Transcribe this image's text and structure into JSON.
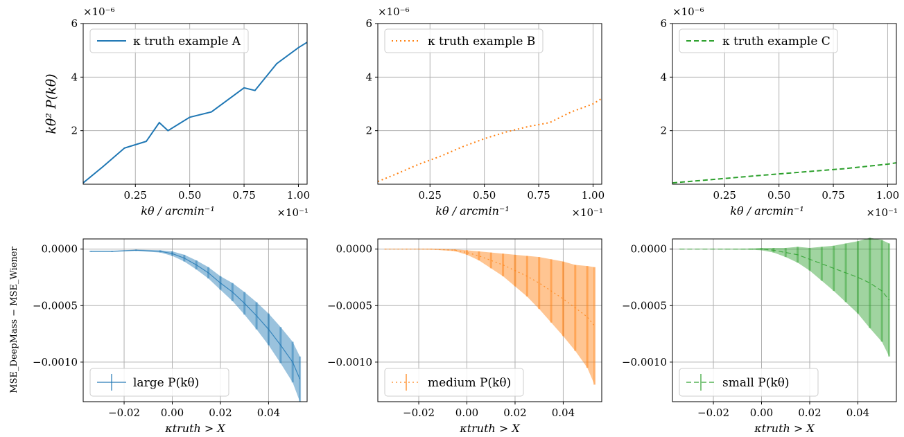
{
  "figure": {
    "top_ylabel": "kθ² P(kθ)",
    "bottom_ylabel": "MSE_DeepMass − MSE_Wiener"
  },
  "chart_data": [
    {
      "type": "line",
      "panel": "top-left",
      "color": "#1f77b4",
      "linestyle": "solid",
      "legend": "κ truth example A",
      "legend_position": "top-left",
      "xlabel": "kθ / arcmin⁻¹",
      "x_multiplier": "×10⁻¹",
      "y_multiplier": "×10⁻⁶",
      "xlim": [
        0.01,
        1.04
      ],
      "ylim": [
        0,
        6
      ],
      "xticks": [
        "0.25",
        "0.50",
        "0.75",
        "1.00"
      ],
      "yticks": [
        "2",
        "4",
        "6"
      ],
      "x": [
        0.01,
        0.1,
        0.2,
        0.3,
        0.36,
        0.4,
        0.5,
        0.6,
        0.7,
        0.75,
        0.8,
        0.9,
        1.0,
        1.04
      ],
      "y": [
        0.05,
        0.65,
        1.35,
        1.6,
        2.3,
        2.0,
        2.5,
        2.7,
        3.3,
        3.6,
        3.5,
        4.5,
        5.1,
        5.3
      ],
      "grid": true
    },
    {
      "type": "line",
      "panel": "top-middle",
      "color": "#ff7f0e",
      "linestyle": "dotted",
      "legend": "κ truth example B",
      "legend_position": "top-left",
      "xlabel": "kθ / arcmin⁻¹",
      "x_multiplier": "×10⁻¹",
      "y_multiplier": "×10⁻⁶",
      "xlim": [
        0.01,
        1.04
      ],
      "ylim": [
        0,
        6
      ],
      "xticks": [
        "0.25",
        "0.50",
        "0.75",
        "1.00"
      ],
      "yticks": [
        "2",
        "4",
        "6"
      ],
      "x": [
        0.01,
        0.1,
        0.2,
        0.3,
        0.4,
        0.5,
        0.6,
        0.7,
        0.8,
        0.9,
        1.0,
        1.04
      ],
      "y": [
        0.1,
        0.4,
        0.75,
        1.05,
        1.4,
        1.7,
        1.95,
        2.15,
        2.3,
        2.7,
        3.0,
        3.2
      ],
      "grid": true
    },
    {
      "type": "line",
      "panel": "top-right",
      "color": "#2ca02c",
      "linestyle": "dashed",
      "legend": "κ truth example C",
      "legend_position": "top-left",
      "xlabel": "kθ / arcmin⁻¹",
      "x_multiplier": "×10⁻¹",
      "y_multiplier": "×10⁻⁶",
      "xlim": [
        0.01,
        1.04
      ],
      "ylim": [
        0,
        6
      ],
      "xticks": [
        "0.25",
        "0.50",
        "0.75",
        "1.00"
      ],
      "yticks": [
        "2",
        "4",
        "6"
      ],
      "x": [
        0.01,
        0.2,
        0.4,
        0.6,
        0.8,
        1.0,
        1.04
      ],
      "y": [
        0.05,
        0.18,
        0.32,
        0.45,
        0.58,
        0.75,
        0.8
      ],
      "grid": true
    },
    {
      "type": "line",
      "panel": "bottom-left",
      "color": "#1f77b4",
      "linestyle": "solid",
      "errorbars": true,
      "legend": "large  P(kθ)",
      "legend_position": "bottom-left",
      "xlabel": "κtruth > X",
      "xlim": [
        -0.037,
        0.056
      ],
      "ylim": [
        -0.00135,
        9e-05
      ],
      "xticks": [
        "−0.02",
        "0.00",
        "0.02",
        "0.04"
      ],
      "yticks": [
        "0.0000",
        "−0.0005",
        "−0.0010"
      ],
      "x": [
        -0.034,
        -0.025,
        -0.015,
        -0.005,
        0.0,
        0.005,
        0.01,
        0.015,
        0.02,
        0.025,
        0.03,
        0.035,
        0.04,
        0.045,
        0.05,
        0.053
      ],
      "y": [
        -2e-05,
        -2e-05,
        -1e-05,
        -2e-05,
        -4e-05,
        -8e-05,
        -0.00014,
        -0.00021,
        -0.0003,
        -0.00038,
        -0.00048,
        -0.00059,
        -0.00071,
        -0.00085,
        -0.001,
        -0.00115
      ],
      "err": [
        5e-06,
        5e-06,
        6e-06,
        1e-05,
        2e-05,
        3e-05,
        4e-05,
        5e-05,
        6e-05,
        8e-05,
        0.0001,
        0.00012,
        0.00014,
        0.00016,
        0.00018,
        0.0002
      ],
      "grid": true
    },
    {
      "type": "line",
      "panel": "bottom-middle",
      "color": "#ff7f0e",
      "linestyle": "dotted",
      "errorbars": true,
      "legend": "medium  P(kθ)",
      "legend_position": "bottom-left",
      "xlabel": "κtruth > X",
      "xlim": [
        -0.037,
        0.056
      ],
      "ylim": [
        -0.00135,
        9e-05
      ],
      "xticks": [
        "−0.02",
        "0.00",
        "0.02",
        "0.04"
      ],
      "yticks": [
        "0.0000",
        "−0.0005",
        "−0.0010"
      ],
      "x": [
        -0.034,
        -0.025,
        -0.015,
        -0.005,
        0.0,
        0.005,
        0.01,
        0.015,
        0.02,
        0.025,
        0.03,
        0.035,
        0.04,
        0.045,
        0.05,
        0.053
      ],
      "y": [
        0.0,
        0.0,
        0.0,
        -1e-05,
        -3e-05,
        -6e-05,
        -0.0001,
        -0.00014,
        -0.00019,
        -0.00024,
        -0.0003,
        -0.00037,
        -0.00044,
        -0.00052,
        -0.0006,
        -0.00068
      ],
      "err": [
        3e-06,
        3e-06,
        4e-06,
        8e-06,
        2e-05,
        4e-05,
        7e-05,
        0.0001,
        0.00014,
        0.00018,
        0.00023,
        0.00028,
        0.00033,
        0.00038,
        0.00045,
        0.00052
      ],
      "grid": true
    },
    {
      "type": "line",
      "panel": "bottom-right",
      "color": "#2ca02c",
      "linestyle": "dashed",
      "errorbars": true,
      "legend": "small  P(kθ)",
      "legend_position": "bottom-left",
      "xlabel": "κtruth > X",
      "xlim": [
        -0.037,
        0.056
      ],
      "ylim": [
        -0.00135,
        9e-05
      ],
      "xticks": [
        "−0.02",
        "0.00",
        "0.02",
        "0.04"
      ],
      "yticks": [
        "0.0000",
        "−0.0005",
        "−0.0010"
      ],
      "x": [
        -0.034,
        -0.025,
        -0.015,
        -0.005,
        0.0,
        0.005,
        0.01,
        0.015,
        0.02,
        0.025,
        0.03,
        0.035,
        0.04,
        0.045,
        0.05,
        0.053
      ],
      "y": [
        0.0,
        0.0,
        0.0,
        0.0,
        0.0,
        -1e-05,
        -3e-05,
        -5e-05,
        -9e-05,
        -0.00013,
        -0.00017,
        -0.00021,
        -0.00025,
        -0.0003,
        -0.00037,
        -0.00045
      ],
      "err": [
        2e-06,
        2e-06,
        3e-06,
        5e-06,
        1e-05,
        2e-05,
        4e-05,
        7e-05,
        0.0001,
        0.00015,
        0.0002,
        0.00026,
        0.00032,
        0.0004,
        0.00045,
        0.0005
      ],
      "grid": true
    }
  ]
}
